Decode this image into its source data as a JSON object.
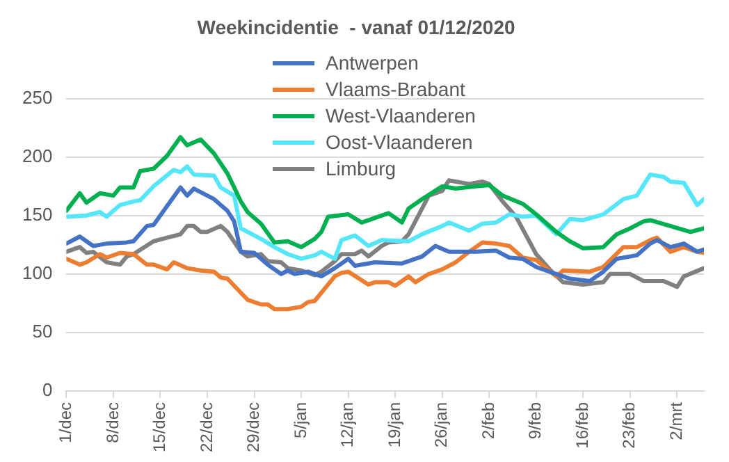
{
  "chart_data": {
    "type": "line",
    "title": "Weekincidentie  - vanaf 01/12/2020",
    "marker": "none",
    "grid": "y",
    "legend": "top",
    "xlim": [
      "2020-12-01",
      "2021-03-06"
    ],
    "xticks": [
      {
        "value": "2020-12-01",
        "label": "1/dec"
      },
      {
        "value": "2020-12-08",
        "label": "8/dec"
      },
      {
        "value": "2020-12-15",
        "label": "15/dec"
      },
      {
        "value": "2020-12-22",
        "label": "22/dec"
      },
      {
        "value": "2020-12-29",
        "label": "29/dec"
      },
      {
        "value": "2021-01-05",
        "label": "5/jan"
      },
      {
        "value": "2021-01-12",
        "label": "12/jan"
      },
      {
        "value": "2021-01-19",
        "label": "19/jan"
      },
      {
        "value": "2021-01-26",
        "label": "26/jan"
      },
      {
        "value": "2021-02-02",
        "label": "2/feb"
      },
      {
        "value": "2021-02-09",
        "label": "9/feb"
      },
      {
        "value": "2021-02-16",
        "label": "16/feb"
      },
      {
        "value": "2021-02-23",
        "label": "23/feb"
      },
      {
        "value": "2021-03-02",
        "label": "2/mrt"
      }
    ],
    "ylim": [
      0,
      250
    ],
    "yticks": [
      0,
      50,
      100,
      150,
      200,
      250
    ],
    "series": [
      {
        "name": "Antwerpen",
        "color": "#4472c4",
        "x": [
          "2020-12-01",
          "2020-12-03",
          "2020-12-05",
          "2020-12-07",
          "2020-12-10",
          "2020-12-11",
          "2020-12-13",
          "2020-12-14",
          "2020-12-16",
          "2020-12-18",
          "2020-12-19",
          "2020-12-20",
          "2020-12-23",
          "2020-12-25",
          "2020-12-26",
          "2020-12-27",
          "2020-12-29",
          "2020-12-31",
          "2021-01-02",
          "2021-01-03",
          "2021-01-04",
          "2021-01-06",
          "2021-01-08",
          "2021-01-10",
          "2021-01-12",
          "2021-01-13",
          "2021-01-16",
          "2021-01-20",
          "2021-01-23",
          "2021-01-25",
          "2021-01-27",
          "2021-01-31",
          "2021-02-03",
          "2021-02-05",
          "2021-02-07",
          "2021-02-09",
          "2021-02-12",
          "2021-02-14",
          "2021-02-17",
          "2021-02-19",
          "2021-02-21",
          "2021-02-24",
          "2021-02-26",
          "2021-02-27",
          "2021-03-01",
          "2021-03-03",
          "2021-03-05",
          "2021-03-06"
        ],
        "values": [
          126,
          132,
          124,
          126,
          127,
          128,
          141,
          142,
          158,
          174,
          167,
          173,
          164,
          154,
          145,
          119,
          118,
          108,
          100,
          103,
          100,
          102,
          98,
          105,
          113,
          107,
          110,
          109,
          115,
          124,
          119,
          119,
          120,
          114,
          113,
          106,
          100,
          96,
          94,
          102,
          113,
          116,
          126,
          129,
          123,
          126,
          119,
          121
        ]
      },
      {
        "name": "Vlaams-Brabant",
        "color": "#ed7d31",
        "x": [
          "2020-12-01",
          "2020-12-03",
          "2020-12-04",
          "2020-12-06",
          "2020-12-07",
          "2020-12-09",
          "2020-12-11",
          "2020-12-13",
          "2020-12-14",
          "2020-12-16",
          "2020-12-17",
          "2020-12-19",
          "2020-12-21",
          "2020-12-23",
          "2020-12-24",
          "2020-12-25",
          "2020-12-28",
          "2020-12-30",
          "2020-12-31",
          "2021-01-01",
          "2021-01-03",
          "2021-01-05",
          "2021-01-06",
          "2021-01-07",
          "2021-01-08",
          "2021-01-10",
          "2021-01-11",
          "2021-01-12",
          "2021-01-15",
          "2021-01-16",
          "2021-01-18",
          "2021-01-19",
          "2021-01-21",
          "2021-01-22",
          "2021-01-24",
          "2021-01-26",
          "2021-01-28",
          "2021-01-30",
          "2021-02-01",
          "2021-02-03",
          "2021-02-05",
          "2021-02-07",
          "2021-02-09",
          "2021-02-12",
          "2021-02-13",
          "2021-02-17",
          "2021-02-19",
          "2021-02-22",
          "2021-02-24",
          "2021-02-26",
          "2021-02-27",
          "2021-03-01",
          "2021-03-03",
          "2021-03-05",
          "2021-03-06"
        ],
        "values": [
          113,
          108,
          110,
          117,
          114,
          118,
          117,
          108,
          108,
          104,
          110,
          105,
          103,
          102,
          97,
          96,
          78,
          74,
          74,
          70,
          70,
          72,
          76,
          77,
          84,
          98,
          101,
          102,
          91,
          93,
          93,
          90,
          98,
          93,
          100,
          104,
          110,
          119,
          127,
          126,
          124,
          114,
          112,
          98,
          103,
          102,
          106,
          123,
          123,
          129,
          131,
          119,
          123,
          119,
          118
        ]
      },
      {
        "name": "West-Vlaanderen",
        "color": "#00b050",
        "x": [
          "2020-12-01",
          "2020-12-03",
          "2020-12-04",
          "2020-12-06",
          "2020-12-08",
          "2020-12-09",
          "2020-12-11",
          "2020-12-12",
          "2020-12-14",
          "2020-12-16",
          "2020-12-18",
          "2020-12-19",
          "2020-12-21",
          "2020-12-23",
          "2020-12-25",
          "2020-12-27",
          "2020-12-28",
          "2020-12-30",
          "2021-01-01",
          "2021-01-03",
          "2021-01-05",
          "2021-01-07",
          "2021-01-08",
          "2021-01-09",
          "2021-01-12",
          "2021-01-14",
          "2021-01-16",
          "2021-01-18",
          "2021-01-20",
          "2021-01-21",
          "2021-01-23",
          "2021-01-26",
          "2021-01-28",
          "2021-01-31",
          "2021-02-02",
          "2021-02-04",
          "2021-02-07",
          "2021-02-09",
          "2021-02-12",
          "2021-02-14",
          "2021-02-16",
          "2021-02-19",
          "2021-02-21",
          "2021-02-23",
          "2021-02-25",
          "2021-02-26",
          "2021-03-01",
          "2021-03-04",
          "2021-03-06"
        ],
        "values": [
          154,
          169,
          161,
          169,
          167,
          174,
          174,
          188,
          190,
          201,
          217,
          210,
          215,
          203,
          186,
          162,
          153,
          143,
          127,
          128,
          123,
          130,
          136,
          149,
          151,
          144,
          148,
          152,
          144,
          156,
          164,
          175,
          173,
          175,
          176,
          167,
          160,
          151,
          136,
          128,
          122,
          123,
          134,
          139,
          145,
          146,
          141,
          136,
          139
        ]
      },
      {
        "name": "Oost-Vlaanderen",
        "color": "#55e6fa",
        "x": [
          "2020-12-01",
          "2020-12-04",
          "2020-12-06",
          "2020-12-07",
          "2020-12-09",
          "2020-12-11",
          "2020-12-12",
          "2020-12-14",
          "2020-12-17",
          "2020-12-18",
          "2020-12-19",
          "2020-12-20",
          "2020-12-23",
          "2020-12-24",
          "2020-12-26",
          "2020-12-27",
          "2020-12-30",
          "2021-01-01",
          "2021-01-03",
          "2021-01-05",
          "2021-01-07",
          "2021-01-08",
          "2021-01-10",
          "2021-01-11",
          "2021-01-13",
          "2021-01-15",
          "2021-01-17",
          "2021-01-21",
          "2021-01-23",
          "2021-01-26",
          "2021-01-27",
          "2021-01-30",
          "2021-02-01",
          "2021-02-03",
          "2021-02-05",
          "2021-02-07",
          "2021-02-09",
          "2021-02-12",
          "2021-02-14",
          "2021-02-16",
          "2021-02-19",
          "2021-02-22",
          "2021-02-24",
          "2021-02-26",
          "2021-02-28",
          "2021-03-01",
          "2021-03-03",
          "2021-03-05",
          "2021-03-06"
        ],
        "values": [
          149,
          150,
          153,
          149,
          159,
          162,
          163,
          175,
          189,
          187,
          192,
          185,
          184,
          174,
          167,
          139,
          130,
          123,
          117,
          113,
          116,
          119,
          113,
          129,
          133,
          124,
          129,
          128,
          134,
          141,
          144,
          137,
          143,
          144,
          151,
          149,
          150,
          134,
          147,
          146,
          151,
          164,
          167,
          185,
          183,
          179,
          178,
          159,
          164
        ]
      },
      {
        "name": "Limburg",
        "color": "#808080",
        "x": [
          "2020-12-01",
          "2020-12-03",
          "2020-12-04",
          "2020-12-05",
          "2020-12-07",
          "2020-12-09",
          "2020-12-10",
          "2020-12-11",
          "2020-12-14",
          "2020-12-16",
          "2020-12-18",
          "2020-12-19",
          "2020-12-20",
          "2020-12-21",
          "2020-12-22",
          "2020-12-24",
          "2020-12-25",
          "2020-12-27",
          "2020-12-28",
          "2020-12-30",
          "2020-12-31",
          "2021-01-02",
          "2021-01-03",
          "2021-01-05",
          "2021-01-07",
          "2021-01-08",
          "2021-01-10",
          "2021-01-11",
          "2021-01-13",
          "2021-01-14",
          "2021-01-15",
          "2021-01-17",
          "2021-01-18",
          "2021-01-20",
          "2021-01-21",
          "2021-01-24",
          "2021-01-26",
          "2021-01-27",
          "2021-01-30",
          "2021-02-01",
          "2021-02-02",
          "2021-02-04",
          "2021-02-06",
          "2021-02-09",
          "2021-02-11",
          "2021-02-13",
          "2021-02-16",
          "2021-02-19",
          "2021-02-20",
          "2021-02-23",
          "2021-02-25",
          "2021-02-28",
          "2021-03-02",
          "2021-03-03",
          "2021-03-06"
        ],
        "values": [
          119,
          123,
          118,
          119,
          110,
          108,
          115,
          117,
          128,
          131,
          134,
          141,
          141,
          136,
          136,
          141,
          136,
          119,
          115,
          117,
          111,
          110,
          105,
          103,
          99,
          102,
          111,
          117,
          117,
          120,
          115,
          124,
          127,
          128,
          134,
          167,
          171,
          180,
          177,
          179,
          177,
          162,
          149,
          117,
          104,
          93,
          91,
          93,
          100,
          100,
          94,
          94,
          89,
          98,
          105
        ]
      }
    ]
  }
}
